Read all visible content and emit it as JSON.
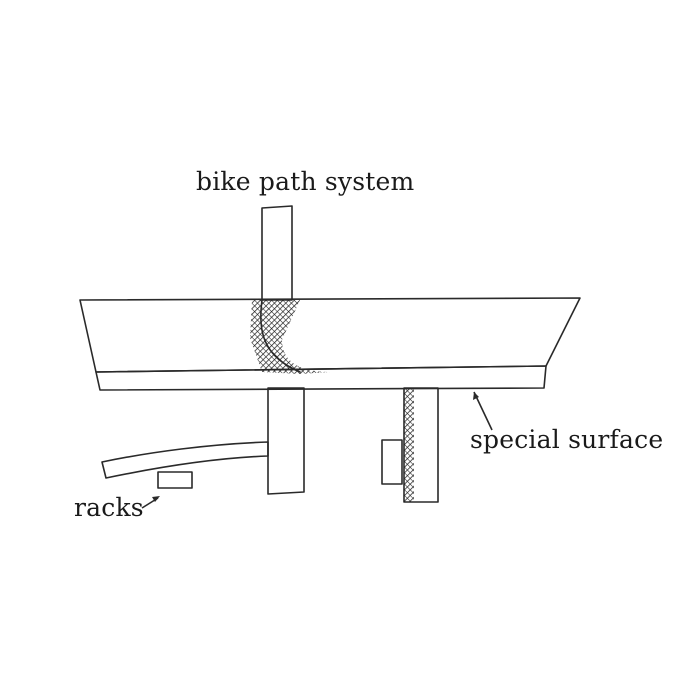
{
  "labels": {
    "bike_path_system": "bike path system",
    "special_surface": "special surface",
    "racks": "racks"
  },
  "colors": {
    "ink": "#2a2a2a",
    "background": "#ffffff"
  }
}
